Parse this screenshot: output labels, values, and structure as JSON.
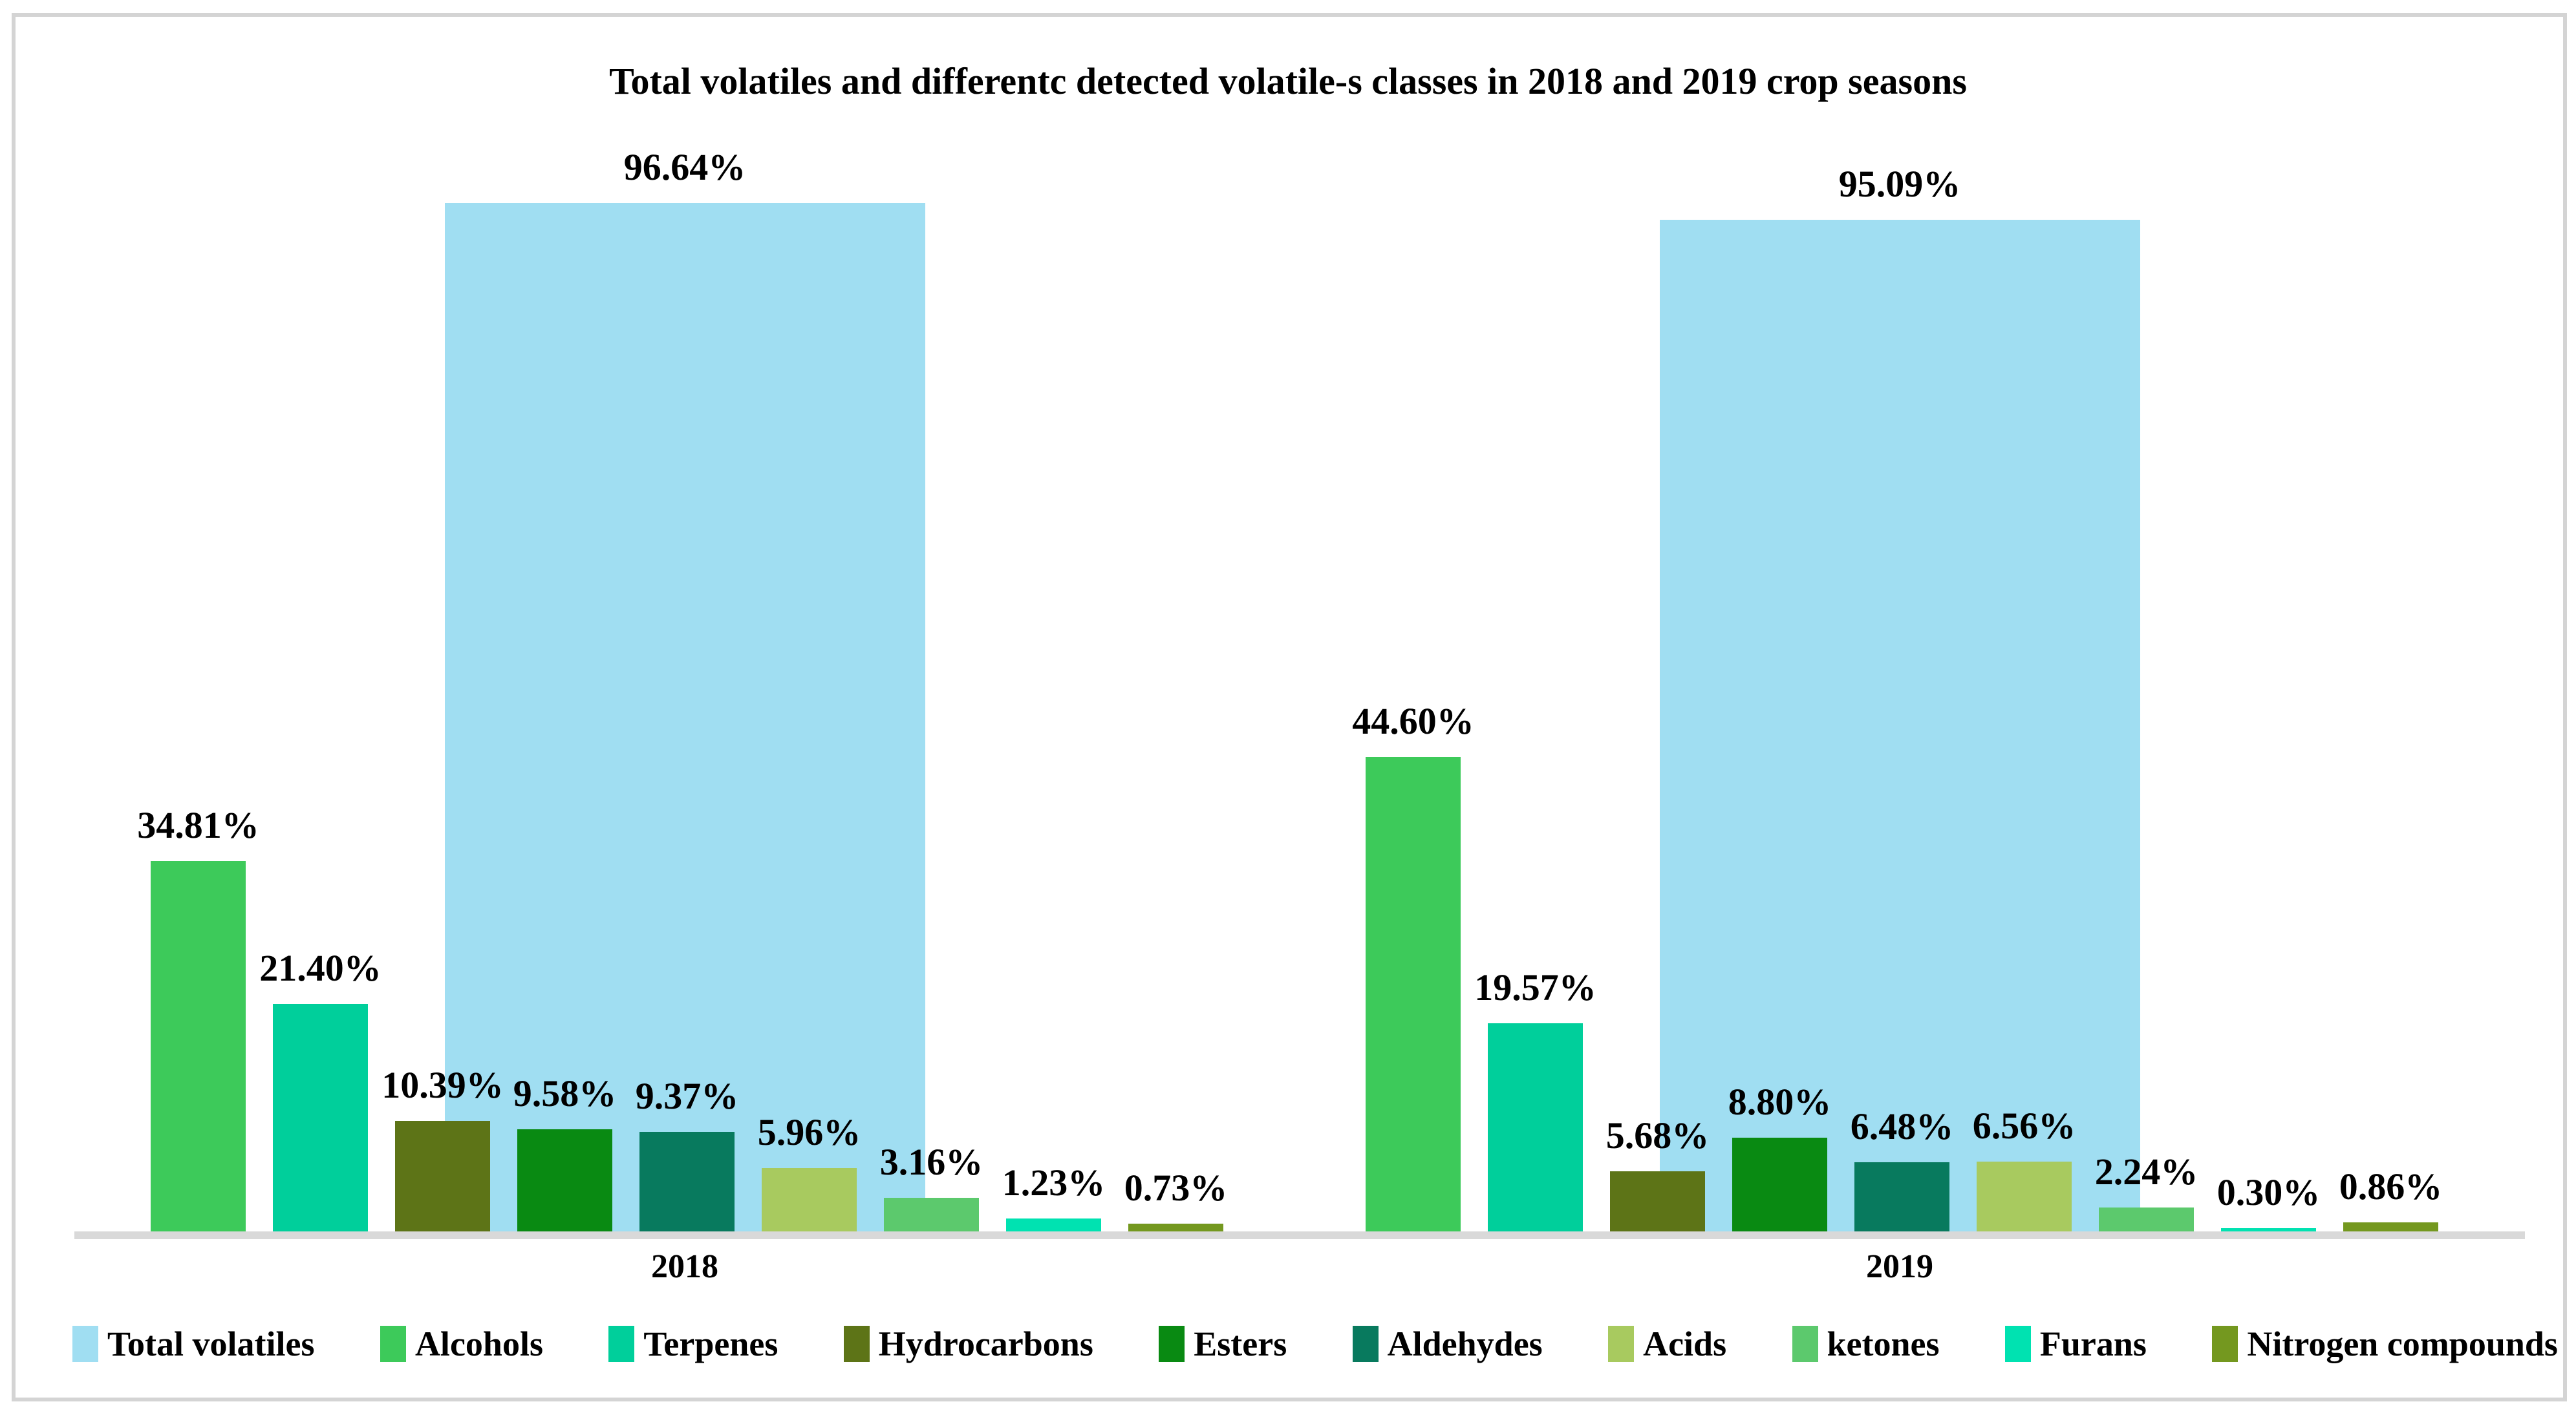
{
  "chart_data": {
    "type": "bar",
    "title": "Total volatiles and differentc detected volatile-s classes in 2018 and 2019 crop seasons",
    "categories": [
      "2018",
      "2019"
    ],
    "value_suffix": "%",
    "ylim": [
      0,
      100
    ],
    "y_axis_visible": false,
    "grid": false,
    "legend_position": "bottom",
    "data_labels": "above-bars",
    "series": [
      {
        "name": "Total volatiles",
        "color": "#a0def2",
        "role": "total-wide-bar",
        "values": [
          96.64,
          95.09
        ]
      },
      {
        "name": "Alcohols",
        "color": "#3dca5a",
        "role": "column",
        "values": [
          34.81,
          44.6
        ]
      },
      {
        "name": "Terpenes",
        "color": "#00cf9b",
        "role": "column",
        "values": [
          21.4,
          19.57
        ]
      },
      {
        "name": "Hydrocarbons",
        "color": "#5d7417",
        "role": "column",
        "values": [
          10.39,
          5.68
        ]
      },
      {
        "name": "Esters",
        "color": "#098a12",
        "role": "column",
        "values": [
          9.58,
          8.8
        ]
      },
      {
        "name": "Aldehydes",
        "color": "#087a5e",
        "role": "column",
        "values": [
          9.37,
          6.48
        ]
      },
      {
        "name": "Acids",
        "color": "#a8ca5f",
        "role": "column",
        "values": [
          5.96,
          6.56
        ]
      },
      {
        "name": "ketones",
        "color": "#5cc96d",
        "role": "column",
        "values": [
          3.16,
          2.24
        ]
      },
      {
        "name": "Furans",
        "color": "#00e2b1",
        "role": "column",
        "values": [
          1.23,
          0.3
        ]
      },
      {
        "name": "Nitrogen compounds",
        "color": "#74981f",
        "role": "column",
        "values": [
          0.73,
          0.86
        ]
      }
    ],
    "value_labels": {
      "2018": [
        "96.64%",
        "34.81%",
        "21.40%",
        "10.39%",
        "9.58%",
        "9.37%",
        "5.96%",
        "3.16%",
        "1.23%",
        "0.73%"
      ],
      "2019": [
        "95.09%",
        "44.60%",
        "19.57%",
        "5.68%",
        "8.80%",
        "6.48%",
        "6.56%",
        "2.24%",
        "0.30%",
        "0.86%"
      ]
    },
    "axis_line_color": "#d9d9d9",
    "frame_border_color": "#d4d4d4"
  }
}
